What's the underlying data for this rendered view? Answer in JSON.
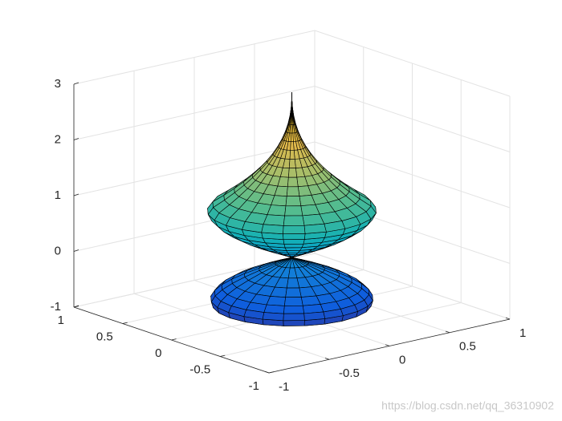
{
  "chart_data": {
    "type": "surface3d",
    "xlim": [
      -1,
      1
    ],
    "xticks": [
      -1,
      -0.5,
      0,
      0.5,
      1
    ],
    "ylim": [
      -1,
      1
    ],
    "yticks": [
      -1,
      -0.5,
      0,
      0.5,
      1
    ],
    "zlim": [
      -1,
      3
    ],
    "zticks": [
      -1,
      0,
      1,
      2,
      3
    ],
    "grid": true,
    "colormap": "parula",
    "watermark": "https://blog.csdn.net/qq_36310902"
  }
}
